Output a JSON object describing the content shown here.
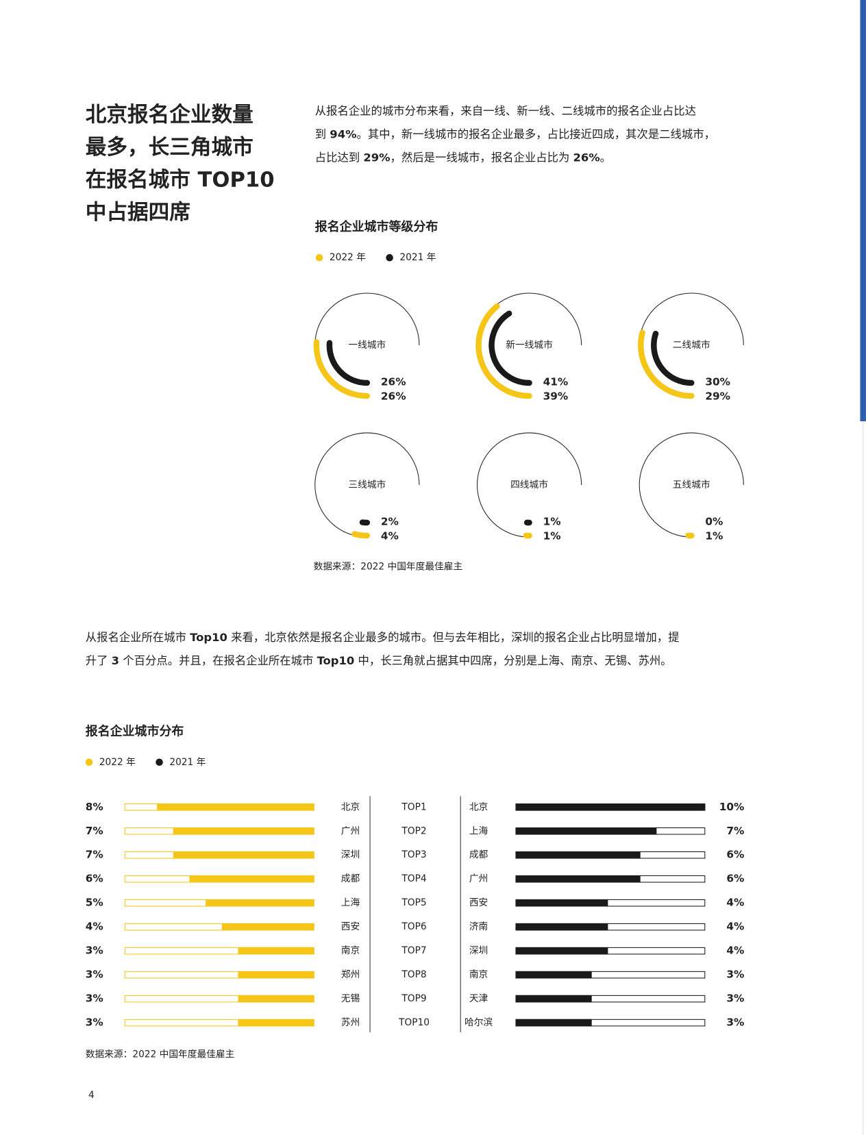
{
  "heading": [
    "北京报名企业数量",
    "最多，长三角城市",
    "在报名城市 TOP10",
    "中占据四席"
  ],
  "intro": [
    [
      "从报名企业的城市分布来看，来自一线、新一线、二线城市的报名企业占比达"
    ],
    [
      "到 ",
      {
        "text": "94%",
        "bold": true
      },
      "。其中，新一线城市的报名企业最多，占比接近四成，其次是二线城市，"
    ],
    [
      "占比达到 ",
      {
        "text": "29%",
        "bold": true
      },
      "，然后是一线城市，报名企业占比为 ",
      {
        "text": "26%",
        "bold": true
      },
      "。"
    ]
  ],
  "paragraph": [
    [
      "从报名企业所在城市 ",
      {
        "text": "Top10",
        "bold": true
      },
      " 来看，北京依然是报名企业最多的城市。但与去年相比，深圳的报名企业占比明显增加，提"
    ],
    [
      "升了 ",
      {
        "text": "3",
        "bold": true
      },
      " 个百分点。并且，在报名企业所在城市 ",
      {
        "text": "Top10",
        "bold": true
      },
      " 中，长三角就占据其中四席，分别是上海、南京、无锡、苏州。"
    ]
  ],
  "page_number": "4",
  "chart_data": [
    {
      "type": "donut",
      "title": "报名企业城市等级分布",
      "categories": [
        "一线城市",
        "新一线城市",
        "二线城市",
        "三线城市",
        "四线城市",
        "五线城市"
      ],
      "series": [
        {
          "name": "2022 年",
          "color": "#f5c518",
          "values": [
            26,
            39,
            29,
            4,
            1,
            1
          ],
          "value_labels": [
            "26%",
            "39%",
            "29%",
            "4%",
            "1%",
            "1%"
          ]
        },
        {
          "name": "2021 年",
          "color": "#1a1a1a",
          "values": [
            26,
            41,
            30,
            2,
            1,
            0
          ],
          "value_labels": [
            "26%",
            "41%",
            "30%",
            "2%",
            "1%",
            "0%"
          ]
        }
      ],
      "ylim": [
        0,
        100
      ],
      "source": "数据来源：2022 中国年度最佳雇主"
    },
    {
      "type": "bar",
      "orientation": "horizontal",
      "title": "报名企业城市分布",
      "ranks": [
        "TOP1",
        "TOP2",
        "TOP3",
        "TOP4",
        "TOP5",
        "TOP6",
        "TOP7",
        "TOP8",
        "TOP9",
        "TOP10"
      ],
      "series": [
        {
          "name": "2022 年",
          "color": "#f5c518",
          "categories": [
            "北京",
            "广州",
            "深圳",
            "成都",
            "上海",
            "西安",
            "南京",
            "郑州",
            "无锡",
            "苏州"
          ],
          "values": [
            8,
            7,
            7,
            6,
            5,
            4,
            3,
            3,
            3,
            3
          ],
          "value_labels": [
            "8%",
            "7%",
            "7%",
            "6%",
            "5%",
            "4%",
            "3%",
            "3%",
            "3%",
            "3%"
          ]
        },
        {
          "name": "2021 年",
          "color": "#1a1a1a",
          "categories": [
            "北京",
            "上海",
            "成都",
            "广州",
            "西安",
            "济南",
            "深圳",
            "南京",
            "天津",
            "哈尔滨"
          ],
          "values": [
            10,
            7,
            6,
            6,
            4,
            4,
            4,
            3,
            3,
            3
          ],
          "value_labels": [
            "10%",
            "7%",
            "6%",
            "6%",
            "4%",
            "4%",
            "4%",
            "3%",
            "3%",
            "3%"
          ]
        }
      ],
      "xlim": [
        -1.7,
        10
      ],
      "source": "数据来源：2022 中国年度最佳雇主"
    }
  ]
}
